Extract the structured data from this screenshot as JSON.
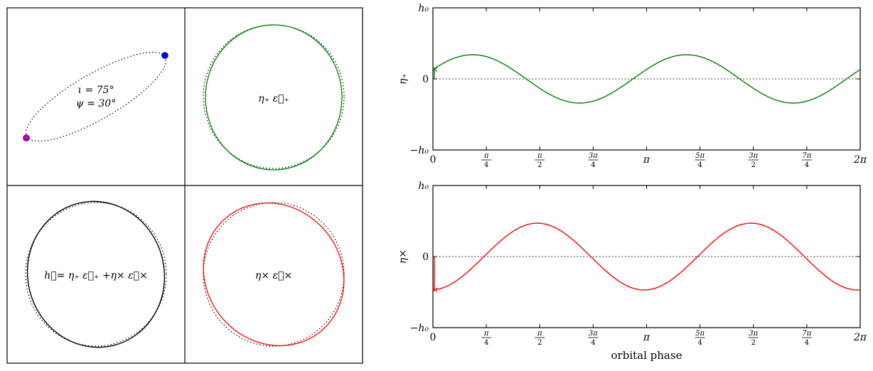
{
  "panels": {
    "orbit": {
      "inclination_label": "ι = 75°",
      "polarization_label": "ψ = 30°",
      "inclination_deg": 75,
      "psi_deg": 30,
      "body_colors": [
        "#0000ff",
        "#bf00bf"
      ]
    },
    "plus_label": "η₊ ε⃡₊",
    "total_label": "h⃡= η₊ ε⃡₊ +η× ε⃡×",
    "cross_label": "η× ε⃡×"
  },
  "colors": {
    "plus": "#008000",
    "cross": "#ff0000",
    "total": "#000000"
  },
  "chart_data": [
    {
      "type": "line",
      "ylabel": "η₊",
      "xlabel": "",
      "yticks": [
        "h₀",
        "0",
        "−h₀"
      ],
      "xticks": [
        "0",
        "π/4",
        "π/2",
        "3π/4",
        "π",
        "5π/4",
        "3π/2",
        "7π/4",
        "2π"
      ],
      "xlim": [
        0,
        6.2832
      ],
      "ylim": [
        -1,
        1
      ],
      "series": [
        {
          "amplitude": 0.34,
          "frequency": 2,
          "phase_offset": -1.17,
          "shape": "cosine",
          "color": "#008000"
        }
      ]
    },
    {
      "type": "line",
      "ylabel": "η×",
      "xlabel": "orbital phase",
      "yticks": [
        "h₀",
        "0",
        "−h₀"
      ],
      "xticks": [
        "0",
        "π/4",
        "π/2",
        "3π/4",
        "π",
        "5π/4",
        "3π/2",
        "7π/4",
        "2π"
      ],
      "xlim": [
        0,
        6.2832
      ],
      "ylim": [
        -1,
        1
      ],
      "series": [
        {
          "amplitude": 0.47,
          "frequency": 2,
          "phase_offset": 0.07,
          "shape": "-cosine",
          "color": "#ff0000"
        }
      ]
    }
  ]
}
